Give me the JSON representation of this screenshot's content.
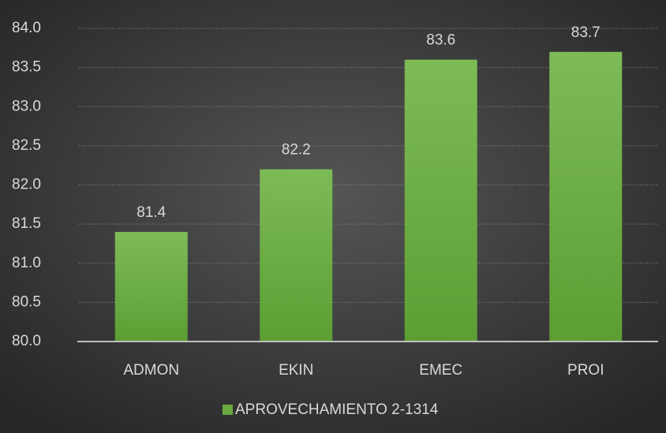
{
  "chart_data": {
    "type": "bar",
    "categories": [
      "ADMON",
      "EKIN",
      "EMEC",
      "PROI"
    ],
    "series": [
      {
        "name": "APROVECHAMIENTO 2-1314",
        "color": "#6aaa3f",
        "values": [
          81.4,
          82.2,
          83.6,
          83.7
        ]
      }
    ],
    "ylim": [
      80.0,
      84.0
    ],
    "yticks": [
      {
        "value": 80.0,
        "label": "80.0"
      },
      {
        "value": 80.5,
        "label": "80.5"
      },
      {
        "value": 81.0,
        "label": "81.0"
      },
      {
        "value": 81.5,
        "label": "81.5"
      },
      {
        "value": 82.0,
        "label": "82.0"
      },
      {
        "value": 82.5,
        "label": "82.5"
      },
      {
        "value": 83.0,
        "label": "83.0"
      },
      {
        "value": 83.5,
        "label": "83.5"
      },
      {
        "value": 84.0,
        "label": "84.0"
      }
    ],
    "grid": true,
    "legend": "bottom"
  }
}
